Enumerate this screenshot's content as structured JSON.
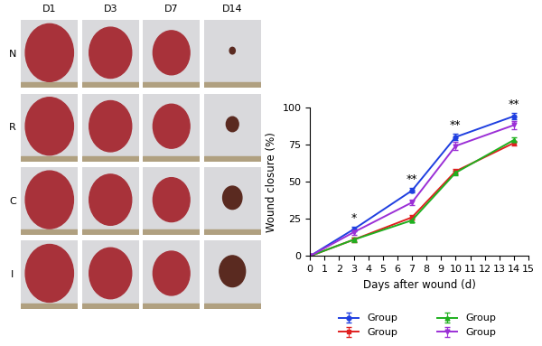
{
  "chart_data": {
    "type": "line",
    "x_label": "Days after wound (d)",
    "y_label": "Wound closure (%)",
    "x": [
      0,
      3,
      7,
      10,
      14
    ],
    "series": [
      {
        "name": "Group",
        "color": "#1f3fe0",
        "marker": "o",
        "values": [
          0,
          18,
          44,
          80,
          94
        ],
        "errors": [
          0,
          1.5,
          1.5,
          2,
          2
        ]
      },
      {
        "name": "Group",
        "color": "#e01f1f",
        "marker": "s",
        "values": [
          0,
          11,
          26,
          57,
          76
        ],
        "errors": [
          0,
          1.5,
          1.5,
          1.5,
          1.5
        ]
      },
      {
        "name": "Group",
        "color": "#1fb01f",
        "marker": "^",
        "values": [
          0,
          11,
          24,
          56,
          78
        ],
        "errors": [
          0,
          1.5,
          1.5,
          1.5,
          1.5
        ]
      },
      {
        "name": "Group",
        "color": "#9b2fd6",
        "marker": "v",
        "values": [
          0,
          16,
          36,
          74,
          88
        ],
        "errors": [
          0,
          1.5,
          2,
          2.5,
          2.5
        ]
      }
    ],
    "annotations": [
      {
        "x": 3,
        "text": "*"
      },
      {
        "x": 7,
        "text": "**"
      },
      {
        "x": 10,
        "text": "**"
      },
      {
        "x": 14,
        "text": "**"
      }
    ],
    "xlim": [
      0,
      15
    ],
    "xticks": [
      0,
      1,
      2,
      3,
      4,
      5,
      6,
      7,
      8,
      9,
      10,
      11,
      12,
      13,
      14,
      15
    ],
    "ylim": [
      0,
      100
    ],
    "yticks": [
      0,
      25,
      50,
      75,
      100
    ],
    "grid": false,
    "legend": "lower center"
  },
  "photo_grid": {
    "columns": [
      "D1",
      "D3",
      "D7",
      "D14"
    ],
    "rows": [
      "N",
      "R",
      "C",
      "I"
    ]
  }
}
